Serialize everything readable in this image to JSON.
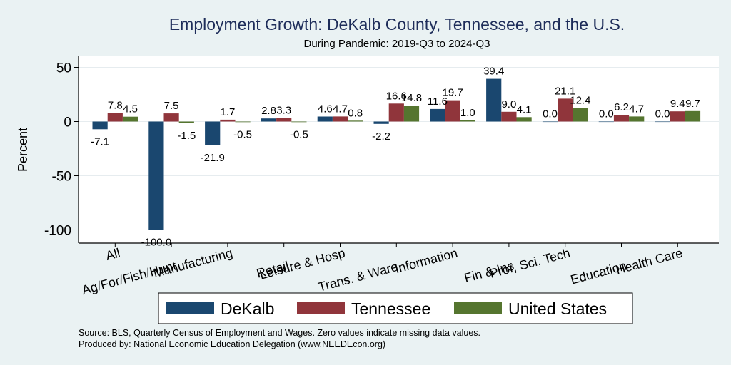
{
  "chart_data": {
    "type": "bar",
    "title": "Employment Growth: DeKalb County, Tennessee, and the U.S.",
    "subtitle": "During Pandemic: 2019-Q3 to 2024-Q3",
    "ylabel": "Percent",
    "xlabel": "",
    "ylim": [
      -115,
      55
    ],
    "yticks": [
      50,
      0,
      -50,
      -100
    ],
    "ytick_labels": [
      "50",
      "0",
      "-50",
      "-100"
    ],
    "grid": true,
    "legend_position": "bottom",
    "categories": [
      "All",
      "Ag/For/Fish/Hunt",
      "Manufacturing",
      "Retail",
      "Leisure & Hosp",
      "Trans. & Ware.",
      "Information",
      "Fin & Ins",
      "Prof, Sci, Tech",
      "Education",
      "Health Care"
    ],
    "series": [
      {
        "name": "DeKalb",
        "color": "#1a476f",
        "values": [
          -7.1,
          -100.0,
          -21.9,
          2.8,
          4.6,
          -2.2,
          11.6,
          39.4,
          0.0,
          0.0,
          0.0
        ],
        "labels": [
          "-7.1",
          "-100.0",
          "-21.9",
          "2.8",
          "4.6",
          "-2.2",
          "11.6",
          "39.4",
          "0.0",
          "0.0",
          "0.0"
        ]
      },
      {
        "name": "Tennessee",
        "color": "#90353b",
        "values": [
          7.8,
          7.5,
          1.7,
          3.3,
          4.7,
          16.6,
          19.7,
          9.0,
          21.1,
          6.2,
          9.4
        ],
        "labels": [
          "7.8",
          "7.5",
          "1.7",
          "3.3",
          "4.7",
          "16.6",
          "19.7",
          "9.0",
          "21.1",
          "6.2",
          "9.4"
        ]
      },
      {
        "name": "United States",
        "color": "#55752f",
        "values": [
          4.5,
          -1.5,
          -0.5,
          -0.5,
          0.8,
          14.8,
          1.0,
          4.1,
          12.4,
          4.7,
          9.7
        ],
        "labels": [
          "4.5",
          "-1.5",
          "-0.5",
          "-0.5",
          "0.8",
          "14.8",
          "1.0",
          "4.1",
          "12.4",
          "4.7",
          "9.7"
        ]
      }
    ]
  },
  "footer": {
    "source": "Source: BLS, Quarterly Census of Employment and Wages. Zero values indicate missing data values.",
    "producer": "Produced by: National Economic Education Delegation (www.NEEDEcon.org)"
  }
}
